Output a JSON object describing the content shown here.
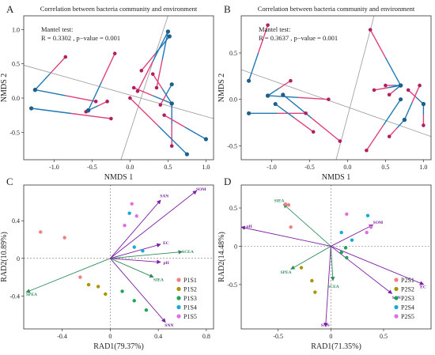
{
  "colors": {
    "bacteria": "#1f78b4",
    "env": "#e0407a",
    "procrustes_line_a": "#1f78b4",
    "procrustes_line_b": "#e0407a",
    "arrow": "#7b1fa2",
    "spea_arrow": "#2e8b57",
    "fit_line": "#999999"
  },
  "chart_data": [
    {
      "id": "A",
      "type": "scatter",
      "panel_label": "A",
      "title": "Correlation between bacteria community and environment",
      "annotation": [
        "Mantel test:",
        "R = 0.3302 , p−value = 0.001"
      ],
      "xlabel": "NMDS 1",
      "ylabel": "NMDS 2",
      "xlim": [
        -1.4,
        1.1
      ],
      "ylim": [
        -0.9,
        1.2
      ],
      "xticks": [
        -1.0,
        -0.5,
        0.0,
        0.5,
        1.0
      ],
      "xtick_labels": [
        "-1.0",
        "-0.5",
        "0.0",
        "0.5",
        "1.0"
      ],
      "yticks": [
        -0.5,
        0.0,
        0.5,
        1.0
      ],
      "ytick_labels": [
        "-0.5",
        "0.0",
        "0.5",
        "1.0"
      ],
      "grid": false,
      "reference_lines": [
        {
          "x1": -1.4,
          "y1": 0.48,
          "x2": 1.1,
          "y2": -0.3
        },
        {
          "x1": -0.12,
          "y1": -0.9,
          "x2": 0.5,
          "y2": 1.2
        }
      ],
      "pairs": [
        {
          "bacteria": [
            -1.25,
            0.12
          ],
          "env": [
            -0.85,
            0.6
          ]
        },
        {
          "bacteria": [
            -1.25,
            0.12
          ],
          "env": [
            -0.45,
            -0.05
          ]
        },
        {
          "bacteria": [
            -1.3,
            -0.15
          ],
          "env": [
            -0.25,
            -0.3
          ]
        },
        {
          "bacteria": [
            -0.55,
            -0.18
          ],
          "env": [
            -0.3,
            -0.05
          ]
        },
        {
          "bacteria": [
            -0.55,
            -0.18
          ],
          "env": [
            -0.58,
            -0.2
          ]
        },
        {
          "bacteria": [
            -0.55,
            -0.18
          ],
          "env": [
            -0.2,
            0.65
          ]
        },
        {
          "bacteria": [
            0.5,
            0.97
          ],
          "env": [
            0.1,
            0.1
          ]
        },
        {
          "bacteria": [
            0.5,
            0.97
          ],
          "env": [
            0.35,
            0.15
          ]
        },
        {
          "bacteria": [
            0.55,
            -0.08
          ],
          "env": [
            0.05,
            0.15
          ]
        },
        {
          "bacteria": [
            0.55,
            -0.08
          ],
          "env": [
            0.3,
            0.35
          ]
        },
        {
          "bacteria": [
            0.55,
            -0.08
          ],
          "env": [
            0.55,
            -0.7
          ]
        },
        {
          "bacteria": [
            0.75,
            -0.82
          ],
          "env": [
            0.0,
            0.0
          ]
        },
        {
          "bacteria": [
            1.0,
            -0.6
          ],
          "env": [
            0.45,
            -0.25
          ]
        },
        {
          "bacteria": [
            0.52,
            0.9
          ],
          "env": [
            0.15,
            0.4
          ]
        },
        {
          "bacteria": [
            0.55,
            0.2
          ],
          "env": [
            0.4,
            -0.1
          ]
        }
      ]
    },
    {
      "id": "B",
      "type": "scatter",
      "panel_label": "B",
      "title": "Correlation between bacteria community and environment",
      "annotation": [
        "Mantel test:",
        "R = 0.3637 , p−value = 0.001"
      ],
      "xlabel": "NMDS 1",
      "ylabel": "NMDS 2",
      "xlim": [
        -1.4,
        1.1
      ],
      "ylim": [
        -0.65,
        0.9
      ],
      "xticks": [
        -1.0,
        -0.5,
        0.0,
        0.5,
        1.0
      ],
      "xtick_labels": [
        "-1.0",
        "-0.5",
        "0.0",
        "0.5",
        "1.0"
      ],
      "yticks": [
        -0.5,
        0.0,
        0.5
      ],
      "ytick_labels": [
        "-0.5",
        "0.0",
        "0.5"
      ],
      "grid": false,
      "reference_lines": [
        {
          "x1": -1.4,
          "y1": 0.32,
          "x2": 1.1,
          "y2": -0.4
        },
        {
          "x1": -0.15,
          "y1": -0.65,
          "x2": 0.35,
          "y2": 0.9
        }
      ],
      "pairs": [
        {
          "bacteria": [
            -1.3,
            0.2
          ],
          "env": [
            -1.05,
            0.8
          ]
        },
        {
          "bacteria": [
            -1.3,
            -0.15
          ],
          "env": [
            -0.55,
            -0.15
          ]
        },
        {
          "bacteria": [
            -1.05,
            0.04
          ],
          "env": [
            -0.75,
            0.2
          ]
        },
        {
          "bacteria": [
            -1.05,
            0.04
          ],
          "env": [
            -0.25,
            0.0
          ]
        },
        {
          "bacteria": [
            -0.95,
            -0.05
          ],
          "env": [
            -0.45,
            -0.35
          ]
        },
        {
          "bacteria": [
            -0.85,
            0.05
          ],
          "env": [
            -0.1,
            -0.45
          ]
        },
        {
          "bacteria": [
            0.7,
            0.15
          ],
          "env": [
            0.3,
            0.75
          ]
        },
        {
          "bacteria": [
            0.7,
            0.15
          ],
          "env": [
            0.35,
            0.1
          ]
        },
        {
          "bacteria": [
            0.7,
            0.15
          ],
          "env": [
            0.55,
            0.05
          ]
        },
        {
          "bacteria": [
            0.7,
            0.15
          ],
          "env": [
            0.5,
            0.15
          ]
        },
        {
          "bacteria": [
            0.7,
            0.0
          ],
          "env": [
            0.25,
            -0.55
          ]
        },
        {
          "bacteria": [
            0.75,
            -0.22
          ],
          "env": [
            0.55,
            -0.4
          ]
        },
        {
          "bacteria": [
            0.75,
            -0.22
          ],
          "env": [
            0.95,
            0.15
          ]
        },
        {
          "bacteria": [
            1.0,
            -0.05
          ],
          "env": [
            0.8,
            0.1
          ]
        },
        {
          "bacteria": [
            1.0,
            -0.05
          ],
          "env": [
            1.0,
            -0.28
          ]
        }
      ]
    },
    {
      "id": "C",
      "type": "scatter",
      "panel_label": "C",
      "xlabel": "RAD1(79.37%)",
      "ylabel": "RAD2(10.89%)",
      "xlim": [
        -0.72,
        0.86
      ],
      "ylim": [
        -0.75,
        0.78
      ],
      "xticks": [
        -0.4,
        0.0,
        0.4,
        0.8
      ],
      "xtick_labels": [
        "-0.4",
        "0",
        "0.4",
        "0.8"
      ],
      "yticks": [
        -0.4,
        0.0,
        0.4
      ],
      "ytick_labels": [
        "-0.4",
        "0",
        "0.4"
      ],
      "grid": false,
      "arrows": [
        {
          "label": "SOM",
          "x": 0.72,
          "y": 0.72,
          "color": "arrow"
        },
        {
          "label": "SAN",
          "x": 0.42,
          "y": 0.62,
          "color": "arrow"
        },
        {
          "label": "EC",
          "x": 0.42,
          "y": 0.15,
          "color": "arrow"
        },
        {
          "label": "SCEA",
          "x": 0.6,
          "y": 0.07,
          "color": "spea_arrow"
        },
        {
          "label": "pH",
          "x": 0.42,
          "y": -0.04,
          "color": "arrow"
        },
        {
          "label": "SIEA",
          "x": 0.36,
          "y": -0.2,
          "color": "spea_arrow"
        },
        {
          "label": "SNN",
          "x": 0.46,
          "y": -0.68,
          "color": "arrow"
        },
        {
          "label": "SPEA",
          "x": -0.7,
          "y": -0.36,
          "color": "spea_arrow"
        }
      ],
      "series": [
        {
          "name": "P1S1",
          "color": "#f08080",
          "points": [
            [
              -0.58,
              0.28
            ],
            [
              -0.38,
              0.22
            ],
            [
              -0.25,
              -0.2
            ]
          ]
        },
        {
          "name": "P1S2",
          "color": "#a89400",
          "points": [
            [
              -0.18,
              -0.28
            ],
            [
              -0.1,
              -0.3
            ],
            [
              -0.04,
              -0.38
            ]
          ]
        },
        {
          "name": "P1S3",
          "color": "#1fa35a",
          "points": [
            [
              0.1,
              -0.35
            ],
            [
              0.2,
              -0.45
            ],
            [
              0.3,
              -0.55
            ]
          ]
        },
        {
          "name": "P1S4",
          "color": "#18a9d8",
          "points": [
            [
              0.16,
              0.48
            ],
            [
              0.2,
              0.12
            ],
            [
              0.27,
              0.08
            ]
          ]
        },
        {
          "name": "P1S5",
          "color": "#e070e0",
          "points": [
            [
              0.18,
              0.58
            ],
            [
              0.22,
              0.45
            ],
            [
              0.12,
              0.35
            ]
          ]
        }
      ],
      "legend": "bottom-right"
    },
    {
      "id": "D",
      "type": "scatter",
      "panel_label": "D",
      "xlabel": "RAD1(71.35%)",
      "ylabel": "RAD2(14.48%)",
      "xlim": [
        -0.85,
        0.95
      ],
      "ylim": [
        -1.08,
        0.8
      ],
      "xticks": [
        -0.5,
        0.0,
        0.5
      ],
      "xtick_labels": [
        "-0.5",
        "0",
        "0.5"
      ],
      "yticks": [
        -0.5,
        0.0,
        0.5
      ],
      "ytick_labels": [
        "-0.5",
        "0",
        "0.5"
      ],
      "grid": false,
      "arrows": [
        {
          "label": "SIEA",
          "x": -0.45,
          "y": 0.55,
          "color": "spea_arrow"
        },
        {
          "label": "SOM",
          "x": 0.4,
          "y": 0.28,
          "color": "arrow"
        },
        {
          "label": "pH",
          "x": -0.85,
          "y": 0.25,
          "color": "arrow"
        },
        {
          "label": "SPEA",
          "x": -0.38,
          "y": -0.3,
          "color": "spea_arrow"
        },
        {
          "label": "SCEA",
          "x": 0.02,
          "y": -0.45,
          "color": "spea_arrow"
        },
        {
          "label": "SAN",
          "x": 0.58,
          "y": -0.62,
          "color": "arrow"
        },
        {
          "label": "EC",
          "x": 0.88,
          "y": -0.5,
          "color": "arrow"
        },
        {
          "label": "SNN",
          "x": -0.05,
          "y": -1.05,
          "color": "arrow"
        }
      ],
      "series": [
        {
          "name": "P2S1",
          "color": "#f08080",
          "points": [
            [
              -0.43,
              0.55
            ],
            [
              -0.4,
              0.54
            ],
            [
              -0.38,
              0.25
            ]
          ]
        },
        {
          "name": "P2S2",
          "color": "#a89400",
          "points": [
            [
              -0.28,
              -0.28
            ],
            [
              -0.18,
              -0.45
            ],
            [
              -0.15,
              -0.6
            ]
          ]
        },
        {
          "name": "P2S3",
          "color": "#1fa35a",
          "points": [
            [
              0.1,
              -0.08
            ],
            [
              0.14,
              -0.02
            ],
            [
              0.15,
              -0.15
            ]
          ]
        },
        {
          "name": "P2S4",
          "color": "#18a9d8",
          "points": [
            [
              0.1,
              0.18
            ],
            [
              0.2,
              0.08
            ],
            [
              0.35,
              0.4
            ]
          ]
        },
        {
          "name": "P2S5",
          "color": "#e070e0",
          "points": [
            [
              0.15,
              0.42
            ],
            [
              0.38,
              0.25
            ],
            [
              0.34,
              0.18
            ]
          ]
        }
      ],
      "legend": "bottom-right"
    }
  ]
}
